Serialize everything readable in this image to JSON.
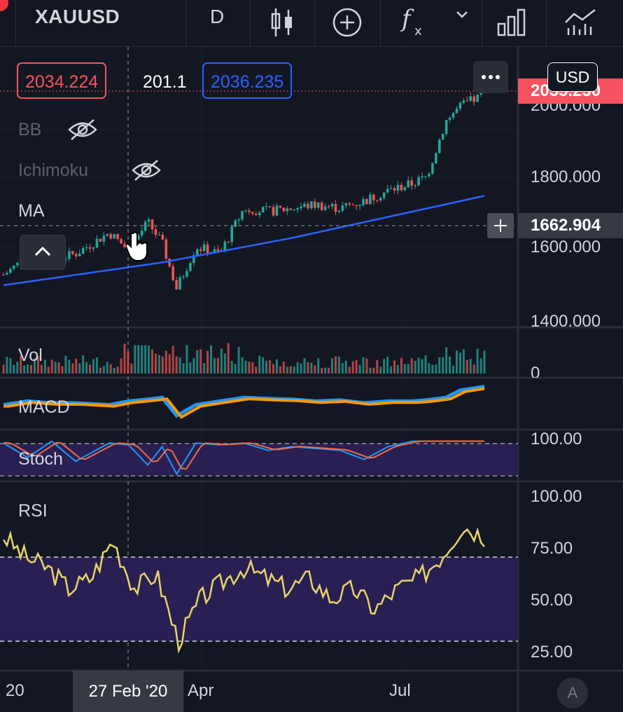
{
  "toolbar": {
    "symbol": "XAUUSD",
    "interval": "D",
    "tools": [
      "candles-icon",
      "plus-circle-icon",
      "fx-icon",
      "chevron-down-icon",
      "bars-chart-icon",
      "compare-icon"
    ]
  },
  "legend": {
    "bid": "2034.224",
    "spread": "201.1",
    "ask": "2036.235",
    "indicators": [
      {
        "name": "BB",
        "hidden": true
      },
      {
        "name": "Ichimoku",
        "hidden": true
      },
      {
        "name": "MA",
        "hidden": false
      }
    ]
  },
  "price_axis": {
    "currency": "USD",
    "current_price": "2035.230",
    "crosshair_price": "1662.904",
    "ticks": [
      "2000.000",
      "1800.000",
      "1600.000",
      "1400.000"
    ]
  },
  "panes": {
    "volume": {
      "label": "Vol",
      "tick": "0"
    },
    "macd": {
      "label": "MACD"
    },
    "stoch": {
      "label": "Stoch",
      "tick": "100.00"
    },
    "rsi": {
      "label": "RSI",
      "ticks": [
        "100.00",
        "75.00",
        "50.00",
        "25.00"
      ]
    }
  },
  "time_axis": {
    "labels": [
      "20",
      "Apr",
      "Jul"
    ],
    "crosshair_date": "27 Feb '20"
  },
  "colors": {
    "up": "#26a69a",
    "down": "#ef5350",
    "ma": "#2962ff",
    "macd": "#2196f3",
    "signal": "#ff9800",
    "rsi": "#e8d46a",
    "stoch_k": "#2196f3",
    "stoch_d": "#ef6c4a",
    "band_fill": "#2a1f52",
    "accent_red": "#f7525f"
  },
  "chart_data": {
    "type": "line",
    "series": [
      {
        "name": "MA",
        "x_fraction": [
          0.0,
          0.33,
          0.6,
          0.85,
          1.0
        ],
        "values": [
          1490,
          1555,
          1625,
          1700,
          1745
        ]
      }
    ],
    "price_path": {
      "description_points_x_fraction": [
        0.0,
        0.05,
        0.1,
        0.15,
        0.22,
        0.26,
        0.3,
        0.33,
        0.36,
        0.4,
        0.45,
        0.5,
        0.55,
        0.6,
        0.65,
        0.7,
        0.75,
        0.8,
        0.85,
        0.88,
        0.92,
        0.95,
        1.0
      ],
      "close": [
        1520,
        1570,
        1560,
        1580,
        1640,
        1590,
        1670,
        1610,
        1480,
        1600,
        1580,
        1710,
        1700,
        1710,
        1720,
        1710,
        1730,
        1760,
        1780,
        1800,
        1960,
        2000,
        2035
      ]
    },
    "rsi": {
      "values": [
        80,
        70,
        65,
        55,
        60,
        78,
        55,
        62,
        30,
        50,
        58,
        65,
        60,
        55,
        60,
        50,
        55,
        45,
        55,
        60,
        70,
        85,
        80
      ],
      "bands": [
        70,
        30
      ],
      "ylim": [
        25,
        100
      ]
    },
    "stoch": {
      "bands": [
        80,
        20
      ],
      "ylim": [
        0,
        100
      ]
    }
  }
}
